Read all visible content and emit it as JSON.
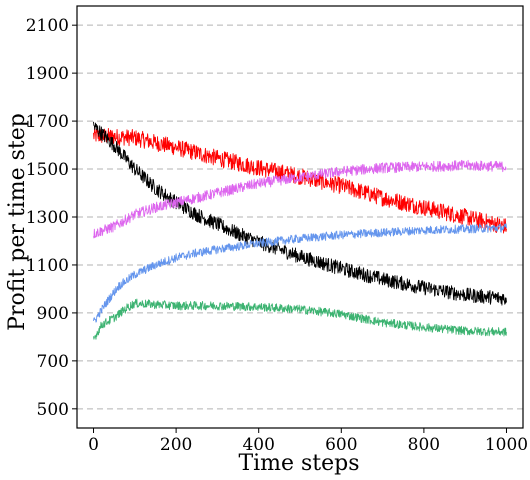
{
  "chart_data": {
    "type": "line",
    "title": "",
    "xlabel": "Time steps",
    "ylabel": "Profit per time step",
    "xlim": [
      -40,
      1040
    ],
    "ylim": [
      420,
      2180
    ],
    "xticks": [
      0,
      200,
      400,
      600,
      800,
      1000
    ],
    "yticks": [
      500,
      700,
      900,
      1100,
      1300,
      1500,
      1700,
      1900,
      2100
    ],
    "grid": "horizontal-dashed",
    "legend": "none",
    "series": [
      {
        "color": "#ff0000",
        "noise": 35,
        "x": [
          0,
          100,
          200,
          300,
          400,
          500,
          600,
          700,
          800,
          900,
          1000
        ],
        "y": [
          1640,
          1630,
          1590,
          1545,
          1505,
          1470,
          1430,
          1380,
          1340,
          1300,
          1260
        ]
      },
      {
        "color": "#000000",
        "noise": 30,
        "x": [
          0,
          50,
          100,
          150,
          200,
          250,
          300,
          350,
          400,
          450,
          500,
          600,
          700,
          800,
          900,
          1000
        ],
        "y": [
          1680,
          1600,
          1500,
          1420,
          1360,
          1310,
          1270,
          1230,
          1195,
          1165,
          1135,
          1085,
          1040,
          1005,
          975,
          960
        ]
      },
      {
        "color": "#dd66ee",
        "noise": 22,
        "x": [
          0,
          50,
          100,
          150,
          200,
          250,
          300,
          400,
          500,
          600,
          700,
          800,
          900,
          1000
        ],
        "y": [
          1230,
          1260,
          1310,
          1340,
          1360,
          1380,
          1400,
          1440,
          1465,
          1490,
          1505,
          1510,
          1515,
          1510
        ]
      },
      {
        "color": "#6495ed",
        "noise": 18,
        "x": [
          0,
          30,
          60,
          100,
          150,
          200,
          250,
          300,
          400,
          500,
          600,
          700,
          800,
          900,
          1000
        ],
        "y": [
          860,
          940,
          1010,
          1060,
          1100,
          1130,
          1150,
          1165,
          1190,
          1210,
          1225,
          1235,
          1245,
          1250,
          1255
        ]
      },
      {
        "color": "#3cb371",
        "noise": 18,
        "x": [
          0,
          20,
          50,
          80,
          100,
          150,
          200,
          300,
          400,
          500,
          600,
          700,
          800,
          900,
          1000
        ],
        "y": [
          790,
          850,
          880,
          920,
          940,
          935,
          930,
          930,
          925,
          915,
          895,
          860,
          840,
          825,
          820
        ]
      }
    ]
  }
}
